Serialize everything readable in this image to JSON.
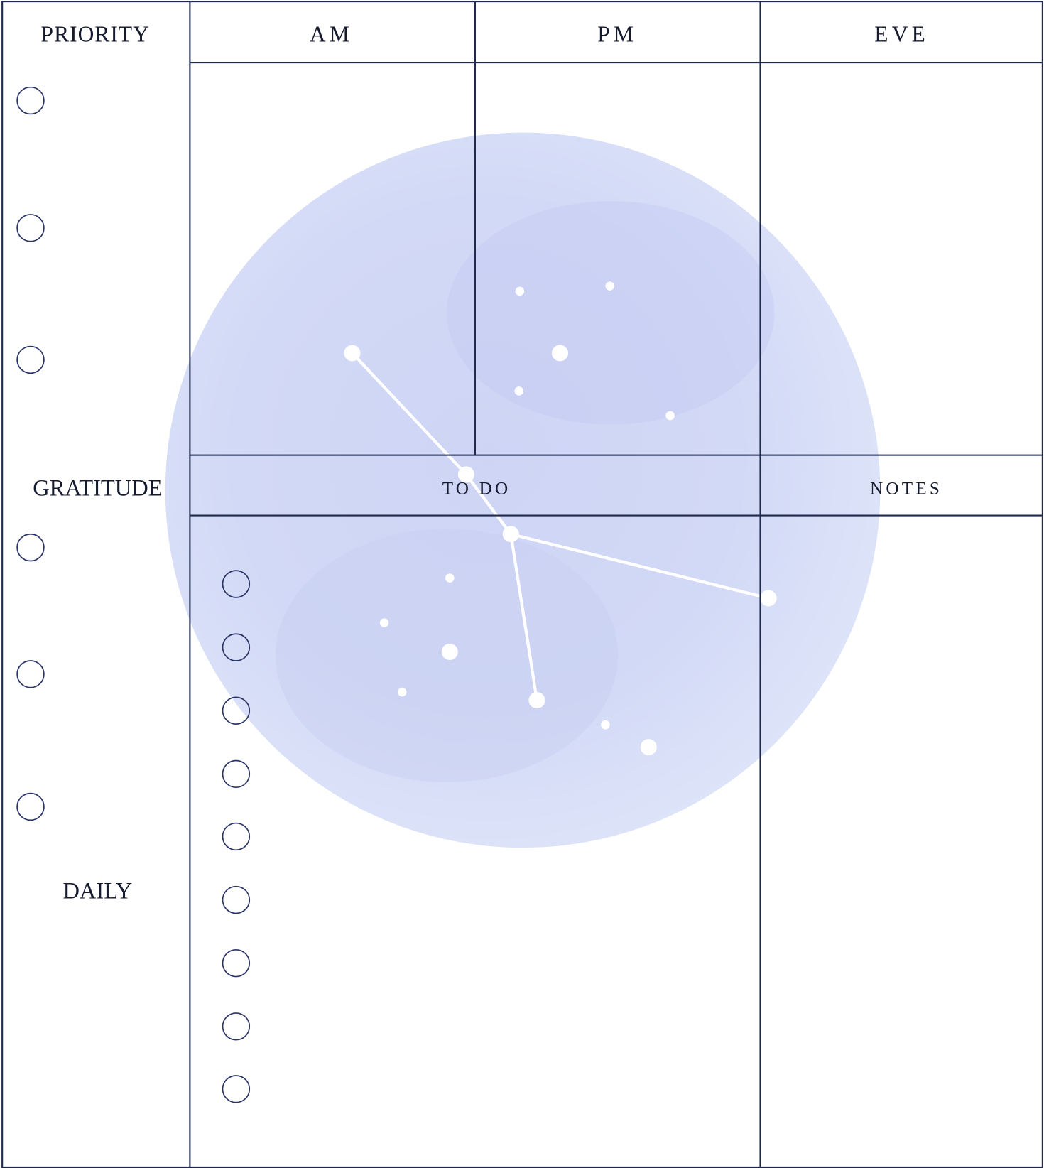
{
  "header": {
    "priority": "PRIORITY",
    "am": "AM",
    "pm": "PM",
    "eve": "EVE"
  },
  "sections": {
    "gratitude": "GRATITUDE",
    "todo": "TO DO",
    "notes": "NOTES",
    "daily": "DAILY"
  }
}
